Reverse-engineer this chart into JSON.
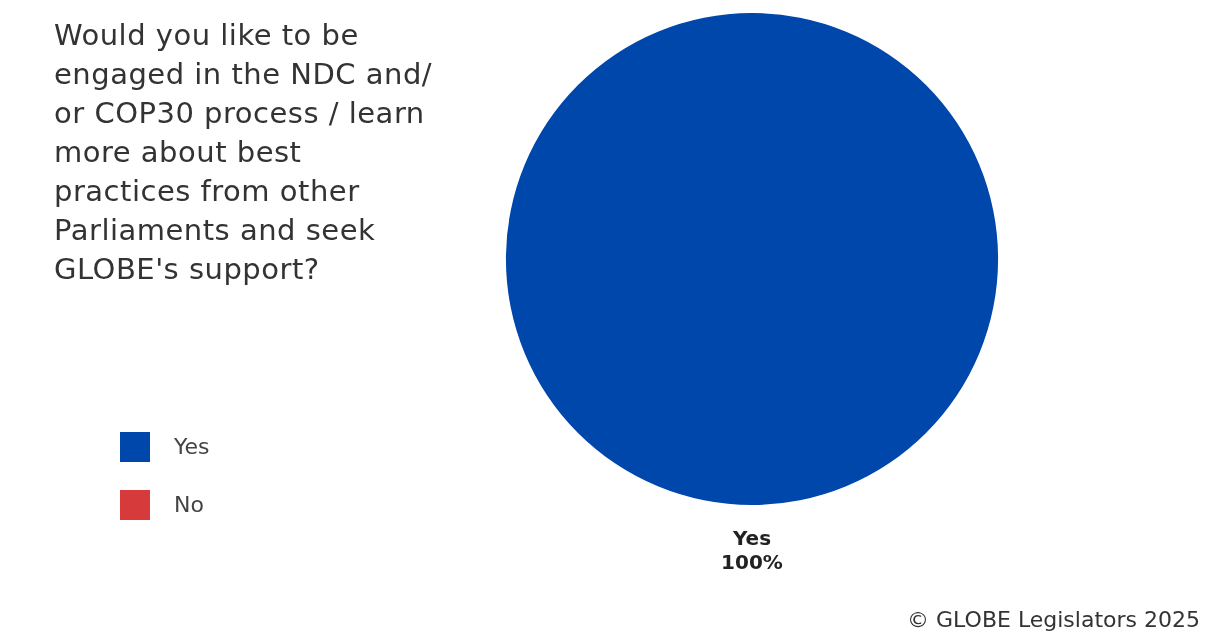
{
  "chart_data": {
    "type": "pie",
    "title": "Would you like to be engaged in the NDC and/ or COP30 process / learn more about best practices from other Parliaments and seek GLOBE's support?",
    "categories": [
      "Yes",
      "No"
    ],
    "values": [
      100,
      0
    ],
    "colors": [
      "#0047ab",
      "#d63a3a"
    ],
    "value_labels": [
      "100%",
      null
    ],
    "legend": "left",
    "annotations": [
      "© GLOBE Legislators 2025"
    ]
  }
}
